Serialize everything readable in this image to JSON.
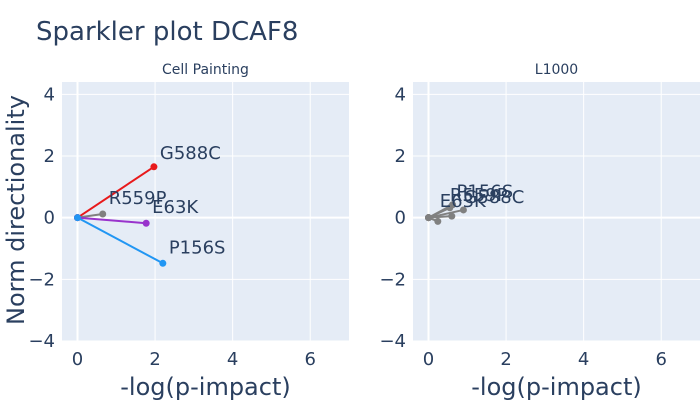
{
  "chart_data": {
    "type": "line",
    "title": "Sparkler plot DCAF8",
    "ylabel": "Norm directionality",
    "panels": [
      {
        "name": "Cell Painting",
        "xlabel": "-log(p-impact)",
        "xlim": [
          -0.4,
          7.0
        ],
        "ylim": [
          -4,
          4.4
        ],
        "xticks": [
          0,
          2,
          4,
          6
        ],
        "yticks": [
          -4,
          -2,
          0,
          2,
          4
        ],
        "origin": [
          0,
          0
        ],
        "series": [
          {
            "label": "G588C",
            "x": 1.97,
            "y": 1.65,
            "color": "#e8191b",
            "label_dx": 6,
            "label_dy": -8
          },
          {
            "label": "R559P",
            "x": 0.65,
            "y": 0.12,
            "color": "#808080",
            "label_dx": 6,
            "label_dy": -10
          },
          {
            "label": "E63K",
            "x": 1.77,
            "y": -0.18,
            "color": "#9933cc",
            "label_dx": 6,
            "label_dy": -10
          },
          {
            "label": "P156S",
            "x": 2.2,
            "y": -1.48,
            "color": "#2196f3",
            "label_dx": 6,
            "label_dy": -10
          }
        ]
      },
      {
        "name": "L1000",
        "xlabel": "-log(p-impact)",
        "xlim": [
          -0.4,
          7.0
        ],
        "ylim": [
          -4,
          4.4
        ],
        "xticks": [
          0,
          2,
          4,
          6
        ],
        "yticks": [
          -4,
          -2,
          0,
          2,
          4
        ],
        "origin": [
          0,
          0
        ],
        "series": [
          {
            "label": "P156S",
            "x": 0.62,
            "y": 0.42,
            "color": "#808080",
            "label_dx": 4,
            "label_dy": -7
          },
          {
            "label": "R559P",
            "x": 0.55,
            "y": 0.32,
            "color": "#808080",
            "label_dx": 0,
            "label_dy": -7
          },
          {
            "label": "G588C",
            "x": 0.9,
            "y": 0.25,
            "color": "#808080",
            "label_dx": 0,
            "label_dy": -7
          },
          {
            "label": "E63K",
            "x": 0.6,
            "y": 0.05,
            "color": "#808080",
            "label_dx": -12,
            "label_dy": -9
          },
          {
            "label": "",
            "x": 0.24,
            "y": -0.12,
            "color": "#808080",
            "label_dx": 0,
            "label_dy": 0
          }
        ]
      }
    ]
  }
}
